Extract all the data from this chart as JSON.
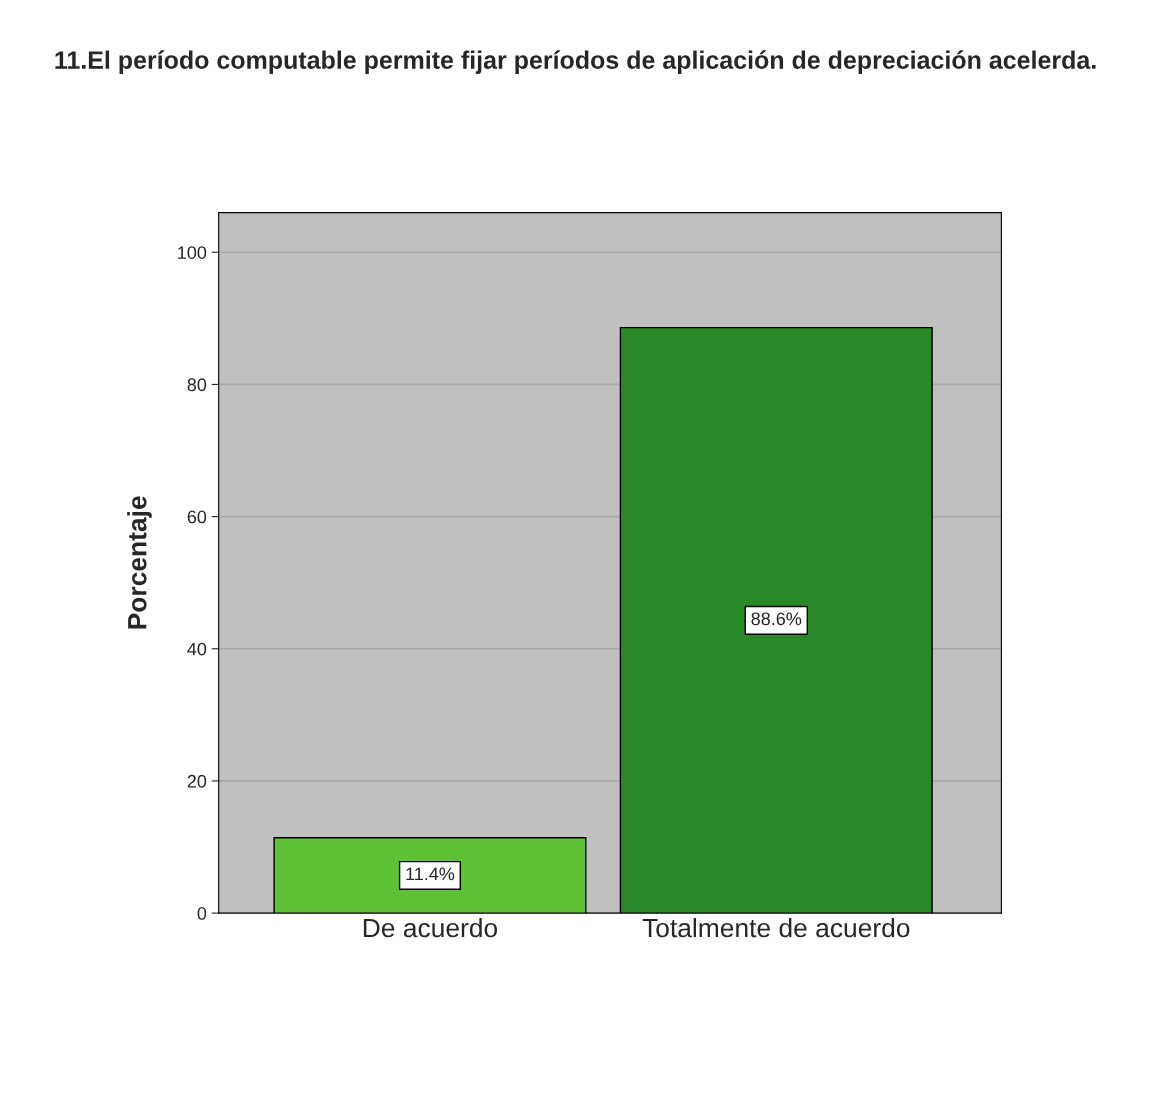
{
  "chart_data": {
    "type": "bar",
    "title": "11.El período computable permite fijar períodos de aplicación de depreciación acelerda.",
    "ylabel": "Porcentaje",
    "categories": [
      "De acuerdo",
      "Totalmente de acuerdo"
    ],
    "values": [
      11.4,
      88.6
    ],
    "colors": [
      "#5fc236",
      "#2a8a2a"
    ],
    "value_labels": [
      "11.4%",
      "88.6%"
    ],
    "ylim": [
      0,
      106
    ],
    "yticks": [
      0,
      20,
      40,
      60,
      80,
      100
    ],
    "grid": "y"
  }
}
